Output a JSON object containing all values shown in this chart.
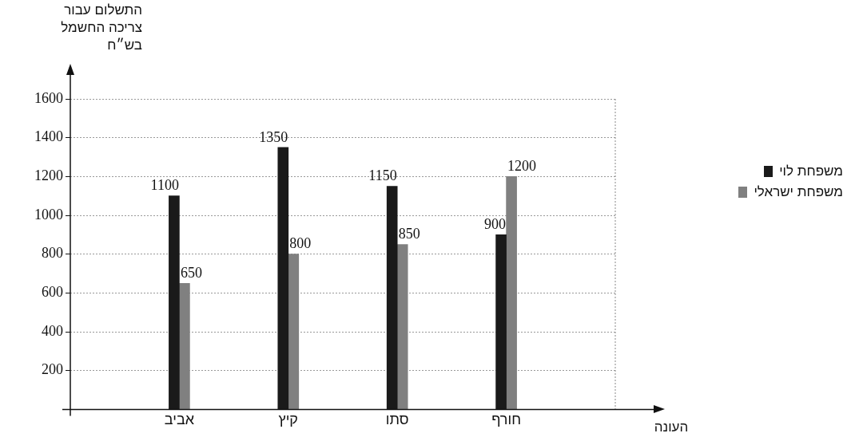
{
  "chart_data": {
    "type": "bar",
    "ylabel": "התשלום עבור\nצריכה החשמל\nבש״ח",
    "xlabel": "העונה",
    "categories": [
      "אביב",
      "קיץ",
      "סתו",
      "חורף"
    ],
    "series": [
      {
        "name": "משפחת לוי",
        "color": "#1a1a1a",
        "values": [
          1100,
          1350,
          1150,
          900
        ]
      },
      {
        "name": "משפחת ישראלי",
        "color": "#808080",
        "values": [
          650,
          800,
          850,
          1200
        ]
      }
    ],
    "ylim": [
      0,
      1600
    ],
    "yticks": [
      200,
      400,
      600,
      800,
      1000,
      1200,
      1400,
      1600
    ],
    "grid": "y",
    "legend": "right",
    "data_labels": true
  }
}
